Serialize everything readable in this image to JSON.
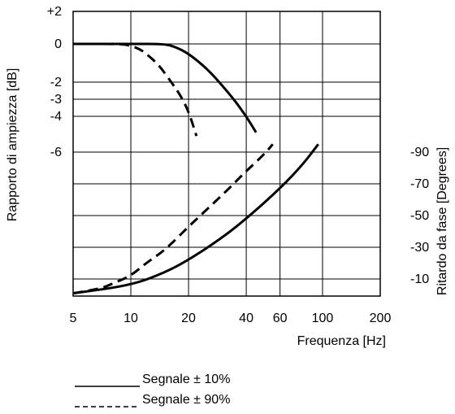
{
  "chart_data": {
    "type": "line",
    "title": "",
    "xlabel": "Frequenza [Hz]",
    "ylabel_left": "Rapporto di ampiezza [dB]",
    "ylabel_right": "Ritardo da fase [Degrees]",
    "x_scale": "log",
    "xlim": [
      5,
      200
    ],
    "x_ticks": [
      {
        "value": 5,
        "label": "5"
      },
      {
        "value": 10,
        "label": "10"
      },
      {
        "value": 20,
        "label": "20"
      },
      {
        "value": 40,
        "label": "40"
      },
      {
        "value": 60,
        "label": "60"
      },
      {
        "value": 100,
        "label": "100"
      },
      {
        "value": 200,
        "label": "200"
      }
    ],
    "left_y_ticks": [
      {
        "value": 2,
        "label": "+2"
      },
      {
        "value": 0,
        "label": "0"
      },
      {
        "value": -2,
        "label": "-2"
      },
      {
        "value": -3,
        "label": "-3"
      },
      {
        "value": -4,
        "label": "-4"
      },
      {
        "value": -6,
        "label": "-6"
      }
    ],
    "right_y_ticks": [
      {
        "value": -90,
        "label": "-90"
      },
      {
        "value": -70,
        "label": "-70"
      },
      {
        "value": -50,
        "label": "-50"
      },
      {
        "value": -30,
        "label": "-30"
      },
      {
        "value": -10,
        "label": "-10"
      }
    ],
    "grid": true,
    "series": [
      {
        "name": "Segnale ± 10%",
        "style": "solid",
        "axis": "left",
        "x": [
          5,
          10,
          15,
          17,
          20,
          25,
          30,
          35,
          40,
          45
        ],
        "y": [
          0,
          0,
          0,
          -0.15,
          -0.5,
          -1.3,
          -2.2,
          -3.1,
          -4.0,
          -4.9
        ]
      },
      {
        "name": "Segnale ± 90%",
        "style": "dashed",
        "axis": "left",
        "x": [
          5,
          9,
          10,
          11,
          12,
          14,
          16,
          18,
          20,
          22
        ],
        "y": [
          0,
          0,
          -0.1,
          -0.25,
          -0.5,
          -1.1,
          -1.9,
          -2.7,
          -3.7,
          -5.1
        ]
      },
      {
        "name": "Segnale ± 10%",
        "style": "solid",
        "axis": "right",
        "x": [
          5,
          10,
          15,
          20,
          30,
          40,
          60,
          80,
          95
        ],
        "y": [
          -1,
          -6,
          -14,
          -22,
          -36,
          -48,
          -67,
          -83,
          -95
        ]
      },
      {
        "name": "Segnale ± 90%",
        "style": "dashed",
        "axis": "right",
        "x": [
          5,
          7,
          8,
          10,
          12,
          15,
          20,
          25,
          30,
          35,
          40,
          50,
          55
        ],
        "y": [
          -1,
          -4,
          -7,
          -12,
          -20,
          -28,
          -43,
          -54,
          -63,
          -71,
          -78,
          -89,
          -95
        ]
      }
    ],
    "legend": [
      {
        "label": "Segnale ± 10%",
        "style": "solid"
      },
      {
        "label": "Segnale ± 90%",
        "style": "dashed"
      }
    ],
    "legend_position": "bottom"
  }
}
